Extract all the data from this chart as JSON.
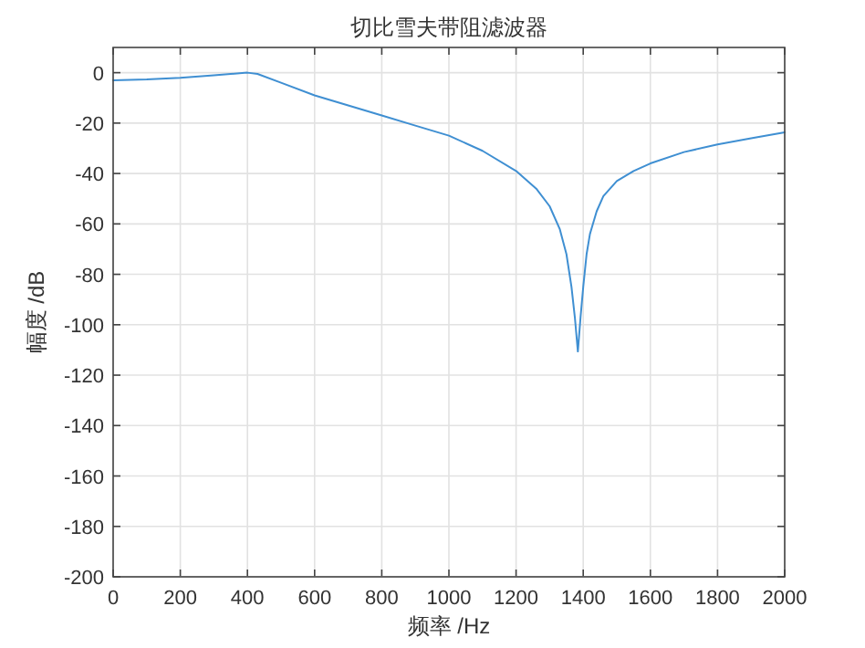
{
  "chart_data": {
    "type": "line",
    "title": "切比雪夫带阻滤波器",
    "xlabel": "频率 /Hz",
    "ylabel": "幅度 /dB",
    "x": [
      0,
      100,
      200,
      300,
      400,
      430,
      500,
      600,
      700,
      800,
      900,
      1000,
      1100,
      1200,
      1260,
      1300,
      1330,
      1350,
      1365,
      1375,
      1384,
      1392,
      1400,
      1410,
      1420,
      1440,
      1460,
      1500,
      1550,
      1600,
      1700,
      1800,
      1900,
      2000
    ],
    "series": [
      {
        "color": "#3f8fd2",
        "values": [
          -3,
          -2.7,
          -2,
          -1,
          0,
          -0.5,
          -4,
          -9,
          -13,
          -17,
          -21,
          -25,
          -31,
          -39,
          -46,
          -53,
          -62,
          -72,
          -85,
          -97,
          -110.6,
          -97,
          -85,
          -72,
          -64,
          -55,
          -49,
          -43,
          -39,
          -36,
          -31.5,
          -28.5,
          -26,
          -23.7
        ]
      }
    ],
    "xlim": [
      0,
      2000
    ],
    "ylim": [
      -200,
      10
    ],
    "xticks": [
      0,
      200,
      400,
      600,
      800,
      1000,
      1200,
      1400,
      1600,
      1800,
      2000
    ],
    "yticks": [
      -200,
      -180,
      -160,
      -140,
      -120,
      -100,
      -80,
      -60,
      -40,
      -20,
      0
    ],
    "grid": true,
    "line_style": "solid"
  }
}
